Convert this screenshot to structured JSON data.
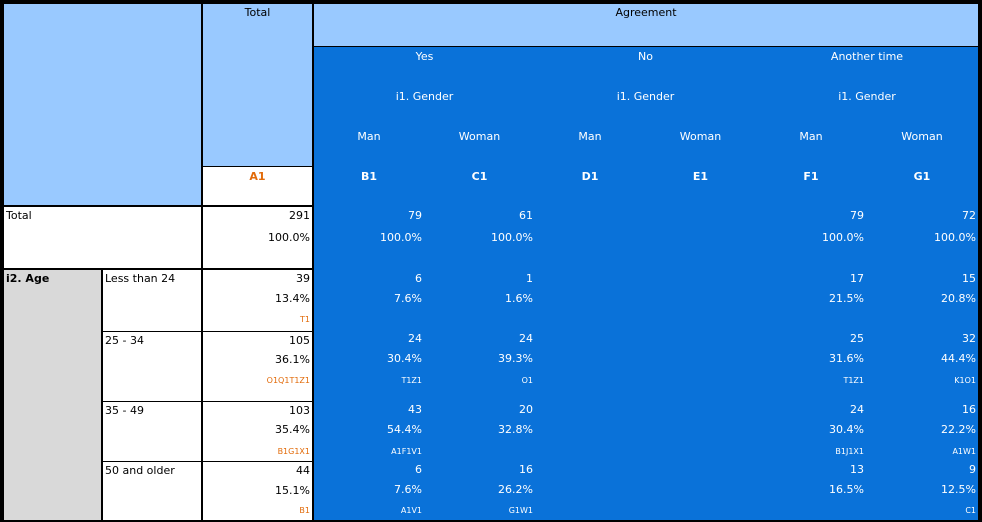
{
  "header": {
    "total_label": "Total",
    "agreement_label": "Agreement",
    "groups": [
      {
        "label": "Yes",
        "sub": "i1. Gender"
      },
      {
        "label": "No",
        "sub": "i1. Gender"
      },
      {
        "label": "Another time",
        "sub": "i1. Gender"
      }
    ],
    "genders": [
      "Man",
      "Woman",
      "Man",
      "Woman",
      "Man",
      "Woman"
    ],
    "total_code": "A1",
    "col_codes": [
      "B1",
      "C1",
      "D1",
      "E1",
      "F1",
      "G1"
    ]
  },
  "total_row": {
    "label": "Total",
    "count": "291",
    "pct": "100.0%",
    "cols": [
      {
        "count": "79",
        "pct": "100.0%"
      },
      {
        "count": "61",
        "pct": "100.0%"
      },
      {
        "count": "",
        "pct": ""
      },
      {
        "count": "",
        "pct": ""
      },
      {
        "count": "79",
        "pct": "100.0%"
      },
      {
        "count": "72",
        "pct": "100.0%"
      }
    ]
  },
  "age": {
    "label": "i2. Age",
    "rows": [
      {
        "label": "Less than 24",
        "total": {
          "count": "39",
          "pct": "13.4%",
          "sig": "T1"
        },
        "cols": [
          {
            "count": "6",
            "pct": "7.6%",
            "sig": ""
          },
          {
            "count": "1",
            "pct": "1.6%",
            "sig": ""
          },
          {
            "count": "",
            "pct": "",
            "sig": ""
          },
          {
            "count": "",
            "pct": "",
            "sig": ""
          },
          {
            "count": "17",
            "pct": "21.5%",
            "sig": ""
          },
          {
            "count": "15",
            "pct": "20.8%",
            "sig": ""
          }
        ]
      },
      {
        "label": "25 - 34",
        "total": {
          "count": "105",
          "pct": "36.1%",
          "sig": "O1Q1T1Z1"
        },
        "cols": [
          {
            "count": "24",
            "pct": "30.4%",
            "sig": "T1Z1"
          },
          {
            "count": "24",
            "pct": "39.3%",
            "sig": "O1"
          },
          {
            "count": "",
            "pct": "",
            "sig": ""
          },
          {
            "count": "",
            "pct": "",
            "sig": ""
          },
          {
            "count": "25",
            "pct": "31.6%",
            "sig": "T1Z1"
          },
          {
            "count": "32",
            "pct": "44.4%",
            "sig": "K1O1"
          }
        ]
      },
      {
        "label": "35 - 49",
        "total": {
          "count": "103",
          "pct": "35.4%",
          "sig": "B1G1X1"
        },
        "cols": [
          {
            "count": "43",
            "pct": "54.4%",
            "sig": "A1F1V1"
          },
          {
            "count": "20",
            "pct": "32.8%",
            "sig": ""
          },
          {
            "count": "",
            "pct": "",
            "sig": ""
          },
          {
            "count": "",
            "pct": "",
            "sig": ""
          },
          {
            "count": "24",
            "pct": "30.4%",
            "sig": "B1J1X1"
          },
          {
            "count": "16",
            "pct": "22.2%",
            "sig": "A1W1"
          }
        ]
      },
      {
        "label": "50 and older",
        "total": {
          "count": "44",
          "pct": "15.1%",
          "sig": "B1"
        },
        "cols": [
          {
            "count": "6",
            "pct": "7.6%",
            "sig": "A1V1"
          },
          {
            "count": "16",
            "pct": "26.2%",
            "sig": "G1W1"
          },
          {
            "count": "",
            "pct": "",
            "sig": ""
          },
          {
            "count": "",
            "pct": "",
            "sig": ""
          },
          {
            "count": "13",
            "pct": "16.5%",
            "sig": ""
          },
          {
            "count": "9",
            "pct": "12.5%",
            "sig": "C1"
          }
        ]
      }
    ]
  }
}
